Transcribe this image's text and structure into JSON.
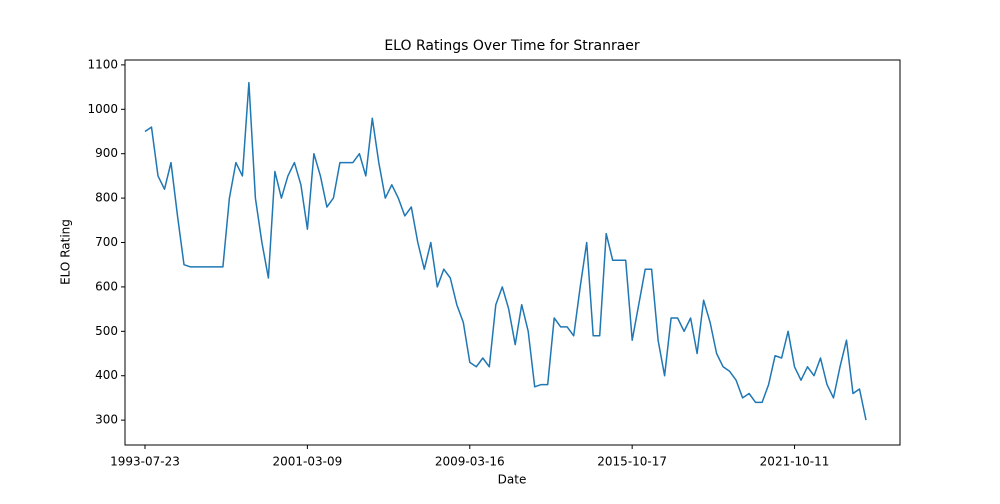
{
  "chart_data": {
    "type": "line",
    "title": "ELO Ratings Over Time for Stranraer",
    "x_label": "Date",
    "y_label": "ELO Rating",
    "color": "#1f77b4",
    "categories": [
      "1993-07-23",
      null,
      null,
      null,
      null,
      null,
      null,
      null,
      null,
      null,
      null,
      null,
      null,
      null,
      null,
      null,
      null,
      null,
      null,
      null,
      null,
      null,
      null,
      null,
      null,
      "2001-03-09",
      null,
      null,
      null,
      null,
      null,
      null,
      null,
      null,
      null,
      null,
      null,
      null,
      null,
      null,
      null,
      null,
      null,
      null,
      null,
      null,
      null,
      null,
      null,
      null,
      "2009-03-16",
      null,
      null,
      null,
      null,
      null,
      null,
      null,
      null,
      null,
      null,
      null,
      null,
      null,
      null,
      null,
      null,
      null,
      null,
      null,
      null,
      null,
      null,
      null,
      null,
      "2015-10-17",
      null,
      null,
      null,
      null,
      null,
      null,
      null,
      null,
      null,
      null,
      null,
      null,
      null,
      null,
      null,
      null,
      null,
      null,
      null,
      null,
      null,
      null,
      null,
      null,
      "2021-10-11",
      null,
      null,
      null,
      null,
      null,
      null,
      null,
      null,
      null,
      null,
      null
    ],
    "values": [
      950,
      960,
      850,
      820,
      880,
      760,
      650,
      645,
      645,
      645,
      645,
      645,
      645,
      800,
      880,
      850,
      1060,
      800,
      700,
      620,
      860,
      800,
      850,
      880,
      830,
      730,
      900,
      850,
      780,
      800,
      880,
      880,
      880,
      900,
      850,
      980,
      880,
      800,
      830,
      800,
      760,
      780,
      700,
      640,
      700,
      600,
      640,
      620,
      560,
      520,
      430,
      420,
      440,
      420,
      560,
      600,
      550,
      470,
      560,
      500,
      375,
      380,
      380,
      530,
      510,
      510,
      490,
      600,
      700,
      490,
      490,
      720,
      660,
      660,
      660,
      480,
      560,
      640,
      640,
      480,
      400,
      530,
      530,
      500,
      530,
      450,
      570,
      520,
      450,
      420,
      410,
      390,
      350,
      360,
      340,
      340,
      380,
      445,
      440,
      500,
      420,
      390,
      420,
      400,
      440,
      380,
      350,
      420,
      480,
      360,
      370,
      300
    ],
    "ylim": [
      244,
      1111
    ],
    "yticks": [
      300,
      400,
      500,
      600,
      700,
      800,
      900,
      1000,
      1100
    ]
  }
}
